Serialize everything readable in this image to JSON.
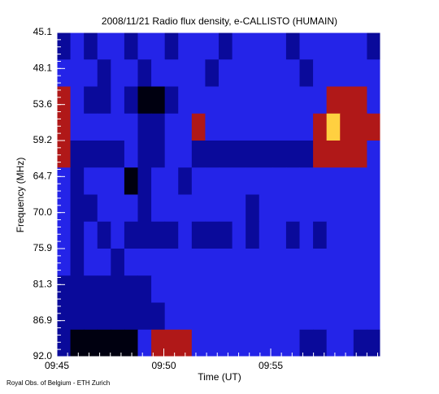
{
  "chart_data": {
    "type": "heatmap",
    "title": "2008/11/21  Radio flux density, e-CALLISTO (HUMAIN)",
    "x_label": "Time (UT)",
    "y_label": "Frequency (MHz)",
    "footnote": "Royal Obs. of Belgium - ETH Zurich",
    "xticks": [
      "09:45",
      "09:50",
      "09:55"
    ],
    "ylim": [
      45.1,
      92.0
    ],
    "yticks": [
      45.1,
      48.1,
      53.6,
      59.2,
      64.7,
      {
        "value": 70,
        "label": "70.0"
      },
      75.9,
      81.3,
      86.9,
      {
        "value": 92,
        "label": "92.0"
      }
    ],
    "zlim": [
      0,
      4
    ],
    "colormap": [
      "#000010",
      "#0a0a9a",
      "#2424e8",
      "#b01818",
      "#ffd040"
    ],
    "values": [
      [
        1,
        2,
        1,
        2,
        2,
        1,
        2,
        2,
        1,
        2,
        2,
        2,
        1,
        2,
        2,
        2,
        2,
        1,
        2,
        2,
        2,
        2,
        2,
        1
      ],
      [
        2,
        2,
        2,
        1,
        2,
        2,
        1,
        2,
        2,
        2,
        2,
        1,
        2,
        2,
        2,
        2,
        2,
        2,
        1,
        2,
        2,
        2,
        2,
        2
      ],
      [
        3,
        2,
        1,
        1,
        2,
        1,
        0,
        0,
        1,
        2,
        2,
        2,
        2,
        2,
        2,
        2,
        2,
        2,
        2,
        2,
        3,
        3,
        3,
        2
      ],
      [
        3,
        2,
        2,
        2,
        2,
        2,
        1,
        1,
        2,
        2,
        3,
        2,
        2,
        2,
        2,
        2,
        2,
        2,
        2,
        3,
        4,
        3,
        3,
        3
      ],
      [
        3,
        1,
        1,
        1,
        1,
        2,
        1,
        1,
        2,
        2,
        1,
        1,
        1,
        1,
        1,
        1,
        1,
        1,
        1,
        3,
        3,
        3,
        3,
        2
      ],
      [
        2,
        1,
        2,
        2,
        2,
        0,
        1,
        2,
        2,
        1,
        2,
        2,
        2,
        2,
        2,
        2,
        2,
        2,
        2,
        2,
        2,
        2,
        2,
        2
      ],
      [
        2,
        1,
        1,
        2,
        2,
        2,
        1,
        2,
        2,
        2,
        2,
        2,
        2,
        2,
        1,
        2,
        2,
        2,
        2,
        2,
        2,
        2,
        2,
        2
      ],
      [
        2,
        1,
        2,
        1,
        2,
        1,
        1,
        1,
        1,
        2,
        1,
        1,
        1,
        2,
        1,
        2,
        2,
        1,
        2,
        1,
        2,
        2,
        2,
        2
      ],
      [
        2,
        1,
        2,
        2,
        1,
        2,
        2,
        2,
        2,
        2,
        2,
        2,
        2,
        2,
        2,
        2,
        2,
        2,
        2,
        2,
        2,
        2,
        2,
        2
      ],
      [
        1,
        1,
        1,
        1,
        1,
        1,
        1,
        2,
        2,
        2,
        2,
        2,
        2,
        2,
        2,
        2,
        2,
        2,
        2,
        2,
        2,
        2,
        2,
        2
      ],
      [
        1,
        1,
        1,
        1,
        1,
        1,
        1,
        1,
        2,
        2,
        2,
        2,
        2,
        2,
        2,
        2,
        2,
        2,
        2,
        2,
        2,
        2,
        2,
        2
      ],
      [
        1,
        0,
        0,
        0,
        0,
        0,
        2,
        3,
        3,
        3,
        2,
        2,
        2,
        2,
        2,
        2,
        2,
        2,
        1,
        1,
        2,
        2,
        1,
        1
      ]
    ]
  }
}
